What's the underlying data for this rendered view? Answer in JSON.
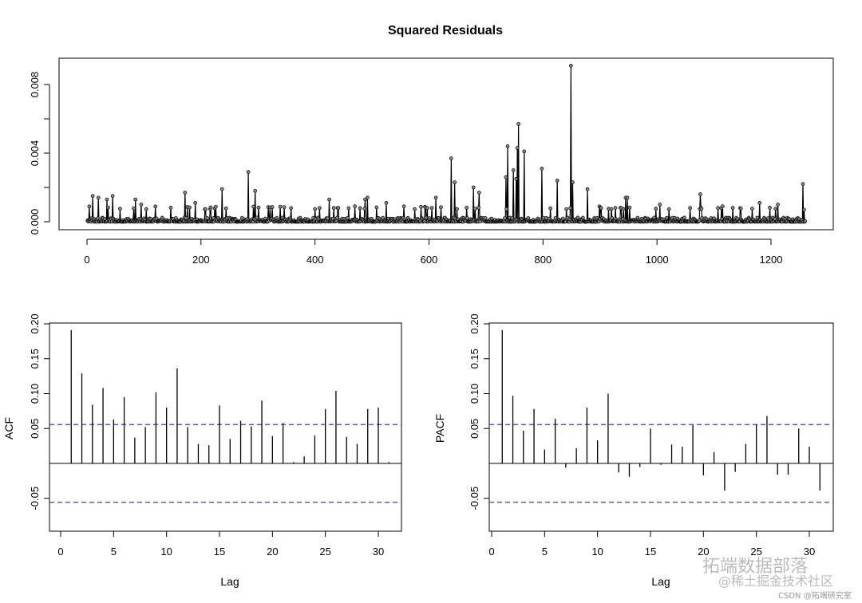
{
  "chart_data": [
    {
      "type": "line",
      "title": "Squared Residuals",
      "xlabel": "",
      "ylabel": "",
      "n_points": 1260,
      "xlim": [
        0,
        1260
      ],
      "ylim": [
        0,
        0.0092
      ],
      "x_ticks": [
        0,
        200,
        400,
        600,
        800,
        1000,
        1200
      ],
      "y_ticks": [
        "0.000",
        "0.004",
        "0.008"
      ],
      "y_tick_values": [
        0,
        0.004,
        0.008
      ],
      "baseline_level": 0.0003,
      "peaks": [
        [
          10,
          0.0015
        ],
        [
          20,
          0.0014
        ],
        [
          35,
          0.0013
        ],
        [
          45,
          0.0015
        ],
        [
          85,
          0.0013
        ],
        [
          95,
          0.001
        ],
        [
          172,
          0.0017
        ],
        [
          190,
          0.0011
        ],
        [
          237,
          0.0019
        ],
        [
          283,
          0.0029
        ],
        [
          295,
          0.0018
        ],
        [
          358,
          0.0008
        ],
        [
          425,
          0.0013
        ],
        [
          470,
          0.0009
        ],
        [
          488,
          0.0013
        ],
        [
          492,
          0.0014
        ],
        [
          525,
          0.0011
        ],
        [
          612,
          0.0014
        ],
        [
          639,
          0.0037
        ],
        [
          645,
          0.0023
        ],
        [
          678,
          0.002
        ],
        [
          688,
          0.0017
        ],
        [
          735,
          0.0026
        ],
        [
          738,
          0.0044
        ],
        [
          748,
          0.003
        ],
        [
          753,
          0.0025
        ],
        [
          755,
          0.0043
        ],
        [
          757,
          0.0057
        ],
        [
          767,
          0.0041
        ],
        [
          798,
          0.0031
        ],
        [
          825,
          0.0024
        ],
        [
          849,
          0.0091
        ],
        [
          852,
          0.0023
        ],
        [
          878,
          0.0019
        ],
        [
          945,
          0.0014
        ],
        [
          948,
          0.0014
        ],
        [
          1005,
          0.001
        ],
        [
          1076,
          0.0016
        ],
        [
          1115,
          0.0009
        ],
        [
          1180,
          0.0011
        ],
        [
          1212,
          0.001
        ],
        [
          1256,
          0.0022
        ],
        [
          1258,
          0.0007
        ]
      ]
    },
    {
      "type": "bar",
      "title": "",
      "xlabel": "Lag",
      "ylabel": "ACF",
      "lags": [
        1,
        2,
        3,
        4,
        5,
        6,
        7,
        8,
        9,
        10,
        11,
        12,
        13,
        14,
        15,
        16,
        17,
        18,
        19,
        20,
        21,
        22,
        23,
        24,
        25,
        26,
        27,
        28,
        29,
        30,
        31
      ],
      "values": [
        0.191,
        0.129,
        0.084,
        0.108,
        0.063,
        0.095,
        0.037,
        0.052,
        0.102,
        0.08,
        0.136,
        0.052,
        0.028,
        0.026,
        0.083,
        0.035,
        0.061,
        0.053,
        0.09,
        0.039,
        0.058,
        0.002,
        0.01,
        0.04,
        0.078,
        0.104,
        0.038,
        0.028,
        0.078,
        0.08,
        0.002
      ],
      "conf_limit": 0.0557,
      "xlim": [
        0,
        31.5
      ],
      "ylim": [
        -0.097,
        0.201
      ],
      "x_ticks": [
        "0",
        "5",
        "10",
        "15",
        "20",
        "25",
        "30"
      ],
      "y_ticks": [
        "-0.05",
        "0.05",
        "0.10",
        "0.15",
        "0.20"
      ],
      "y_tick_values": [
        -0.05,
        0.05,
        0.1,
        0.15,
        0.2
      ]
    },
    {
      "type": "bar",
      "title": "",
      "xlabel": "Lag",
      "ylabel": "PACF",
      "lags": [
        1,
        2,
        3,
        4,
        5,
        6,
        7,
        8,
        9,
        10,
        11,
        12,
        13,
        14,
        15,
        16,
        17,
        18,
        19,
        20,
        21,
        22,
        23,
        24,
        25,
        26,
        27,
        28,
        29,
        30,
        31
      ],
      "values": [
        0.191,
        0.097,
        0.047,
        0.078,
        0.02,
        0.064,
        -0.006,
        0.022,
        0.08,
        0.033,
        0.1,
        -0.013,
        -0.019,
        -0.005,
        0.05,
        -0.002,
        0.027,
        0.024,
        0.055,
        -0.017,
        0.016,
        -0.039,
        -0.012,
        0.028,
        0.056,
        0.068,
        -0.016,
        -0.016,
        0.05,
        0.024,
        -0.039
      ],
      "conf_limit": 0.0557,
      "xlim": [
        0,
        31.5
      ],
      "ylim": [
        -0.097,
        0.201
      ],
      "x_ticks": [
        "0",
        "5",
        "10",
        "15",
        "20",
        "25",
        "30"
      ],
      "y_ticks": [
        "-0.05",
        "0.05",
        "0.10",
        "0.15",
        "0.20"
      ],
      "y_tick_values": [
        -0.05,
        0.05,
        0.1,
        0.15,
        0.2
      ]
    }
  ],
  "colors": {
    "line": "#000000",
    "conf": "#3b3bd6",
    "point_fill": "#888888"
  },
  "watermark": {
    "main": "拓端数据部落",
    "sub": "@稀土掘金技术社区",
    "footer": "CSDN @拓端研究室"
  }
}
